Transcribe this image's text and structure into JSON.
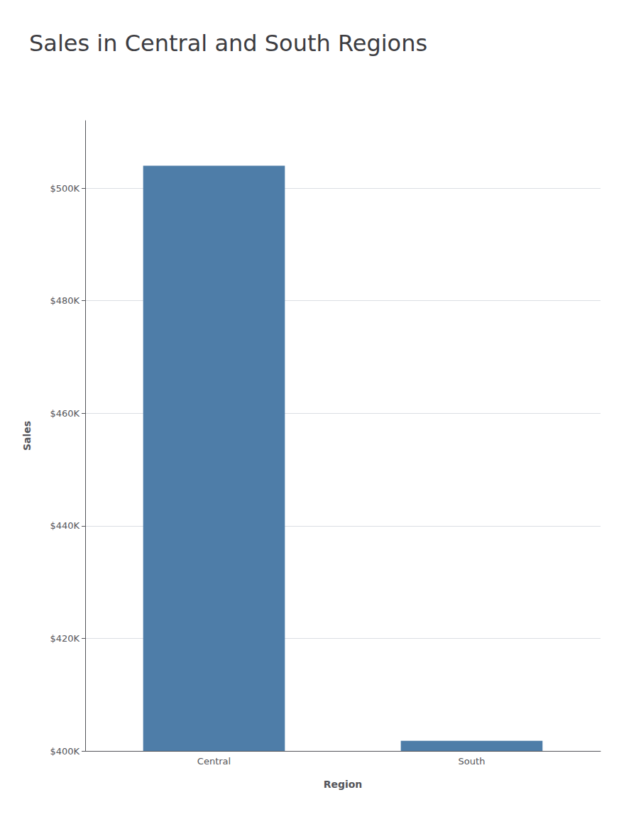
{
  "chart_data": {
    "type": "bar",
    "title": "Sales in Central and South Regions",
    "xlabel": "Region",
    "ylabel": "Sales",
    "categories": [
      "Central",
      "South"
    ],
    "values": [
      504000,
      401800
    ],
    "color": "#4e7da8",
    "ylim": [
      400000,
      512000
    ],
    "yticks": [
      {
        "value": 400000,
        "label": "$400K"
      },
      {
        "value": 420000,
        "label": "$420K"
      },
      {
        "value": 440000,
        "label": "$440K"
      },
      {
        "value": 460000,
        "label": "$460K"
      },
      {
        "value": 480000,
        "label": "$480K"
      },
      {
        "value": 500000,
        "label": "$500K"
      }
    ],
    "grid": true
  }
}
